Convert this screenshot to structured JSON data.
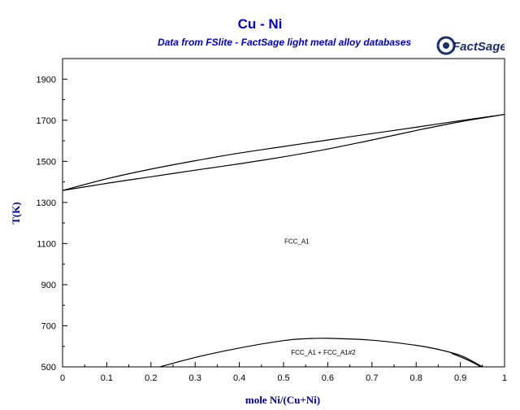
{
  "chart_data": {
    "type": "line",
    "title": "Cu - Ni",
    "subtitle": "Data from FSlite - FactSage light metal alloy databases",
    "xlabel": "mole Ni/(Cu+Ni)",
    "ylabel": "T(K)",
    "xlim": [
      0,
      1
    ],
    "ylim": [
      500,
      2000
    ],
    "xticks": [
      "0",
      "0.1",
      "0.2",
      "0.3",
      "0.4",
      "0.5",
      "0.6",
      "0.7",
      "0.8",
      "0.9",
      "1"
    ],
    "yticks": [
      "500",
      "700",
      "900",
      "1100",
      "1300",
      "1500",
      "1700",
      "1900"
    ],
    "grid": false,
    "phase_labels": [
      {
        "text": "FCC_A1",
        "x": 0.53,
        "y": 1100
      },
      {
        "text": "FCC_A1 + FCC_A1#2",
        "x": 0.59,
        "y": 560
      }
    ],
    "series": [
      {
        "role": "liquidus",
        "points": [
          [
            0,
            1358
          ],
          [
            0.1,
            1415
          ],
          [
            0.2,
            1462
          ],
          [
            0.3,
            1503
          ],
          [
            0.4,
            1540
          ],
          [
            0.5,
            1572
          ],
          [
            0.6,
            1604
          ],
          [
            0.7,
            1635
          ],
          [
            0.8,
            1666
          ],
          [
            0.9,
            1698
          ],
          [
            1,
            1728
          ]
        ]
      },
      {
        "role": "solidus",
        "points": [
          [
            0,
            1358
          ],
          [
            0.1,
            1393
          ],
          [
            0.2,
            1425
          ],
          [
            0.3,
            1457
          ],
          [
            0.4,
            1488
          ],
          [
            0.5,
            1522
          ],
          [
            0.6,
            1560
          ],
          [
            0.7,
            1604
          ],
          [
            0.8,
            1650
          ],
          [
            0.9,
            1693
          ],
          [
            1,
            1728
          ]
        ]
      },
      {
        "role": "miscibility-gap",
        "points": [
          [
            0.22,
            500
          ],
          [
            0.3,
            546
          ],
          [
            0.4,
            592
          ],
          [
            0.5,
            628
          ],
          [
            0.55,
            637
          ],
          [
            0.6,
            639
          ],
          [
            0.7,
            630
          ],
          [
            0.8,
            605
          ],
          [
            0.85,
            585
          ],
          [
            0.9,
            556
          ],
          [
            0.93,
            524
          ],
          [
            0.95,
            500
          ]
        ]
      },
      {
        "role": "miscibility-gap-inner",
        "points": [
          [
            0.88,
            566
          ],
          [
            0.91,
            540
          ],
          [
            0.935,
            514
          ],
          [
            0.945,
            500
          ]
        ]
      }
    ]
  },
  "logo": {
    "text": "FactSage",
    "color": "#1a2e6e"
  }
}
